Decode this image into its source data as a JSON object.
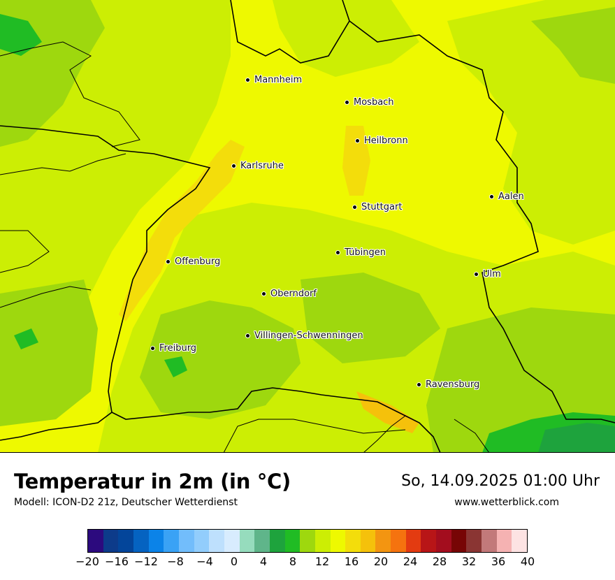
{
  "title": "Temperatur in 2m (in °C)",
  "model": "Modell: ICON-D2 21z, Deutscher Wetterdienst",
  "datetime": "So, 14.09.2025 01:00 Uhr",
  "site": "www.wetterblick.com",
  "cities": [
    {
      "name": "Mannheim"
    },
    {
      "name": "Mosbach"
    },
    {
      "name": "Heilbronn"
    },
    {
      "name": "Karlsruhe"
    },
    {
      "name": "Aalen"
    },
    {
      "name": "Stuttgart"
    },
    {
      "name": "Tübingen"
    },
    {
      "name": "Offenburg"
    },
    {
      "name": "Ulm"
    },
    {
      "name": "Oberndorf"
    },
    {
      "name": "Villingen-Schwenningen"
    },
    {
      "name": "Freiburg"
    },
    {
      "name": "Ravensburg"
    }
  ],
  "legend": {
    "colors": [
      "#2c0a7e",
      "#0d3b8a",
      "#03459a",
      "#0563c1",
      "#0b83e8",
      "#3aa2f5",
      "#72bdfb",
      "#92cdfc",
      "#bee0fd",
      "#d8ecfe",
      "#96dcbd",
      "#5fb58a",
      "#1ea33d",
      "#20bc24",
      "#9ed80e",
      "#ccee04",
      "#eef900",
      "#f3dd0b",
      "#f5c10b",
      "#f39511",
      "#f5730f",
      "#e33b11",
      "#b81517",
      "#a30d1e",
      "#770505",
      "#8a3533",
      "#c2797a",
      "#f5b2b2",
      "#fde3e3"
    ],
    "ticks": [
      "−20",
      "−16",
      "−12",
      "−8",
      "−4",
      "0",
      "4",
      "8",
      "12",
      "16",
      "20",
      "24",
      "28",
      "32",
      "36",
      "40"
    ],
    "tick_values": [
      -20,
      -16,
      -12,
      -8,
      -4,
      0,
      4,
      8,
      12,
      16,
      20,
      24,
      28,
      32,
      36,
      40
    ],
    "min": -20,
    "max": 40
  },
  "field_colors": {
    "yellow": "#eef900",
    "yellow_green": "#ccee04",
    "light_green": "#9ed80e",
    "green": "#20bc24",
    "dark_green": "#1ea33d",
    "warm": "#f3dd0b",
    "warmer": "#f5c10b"
  }
}
